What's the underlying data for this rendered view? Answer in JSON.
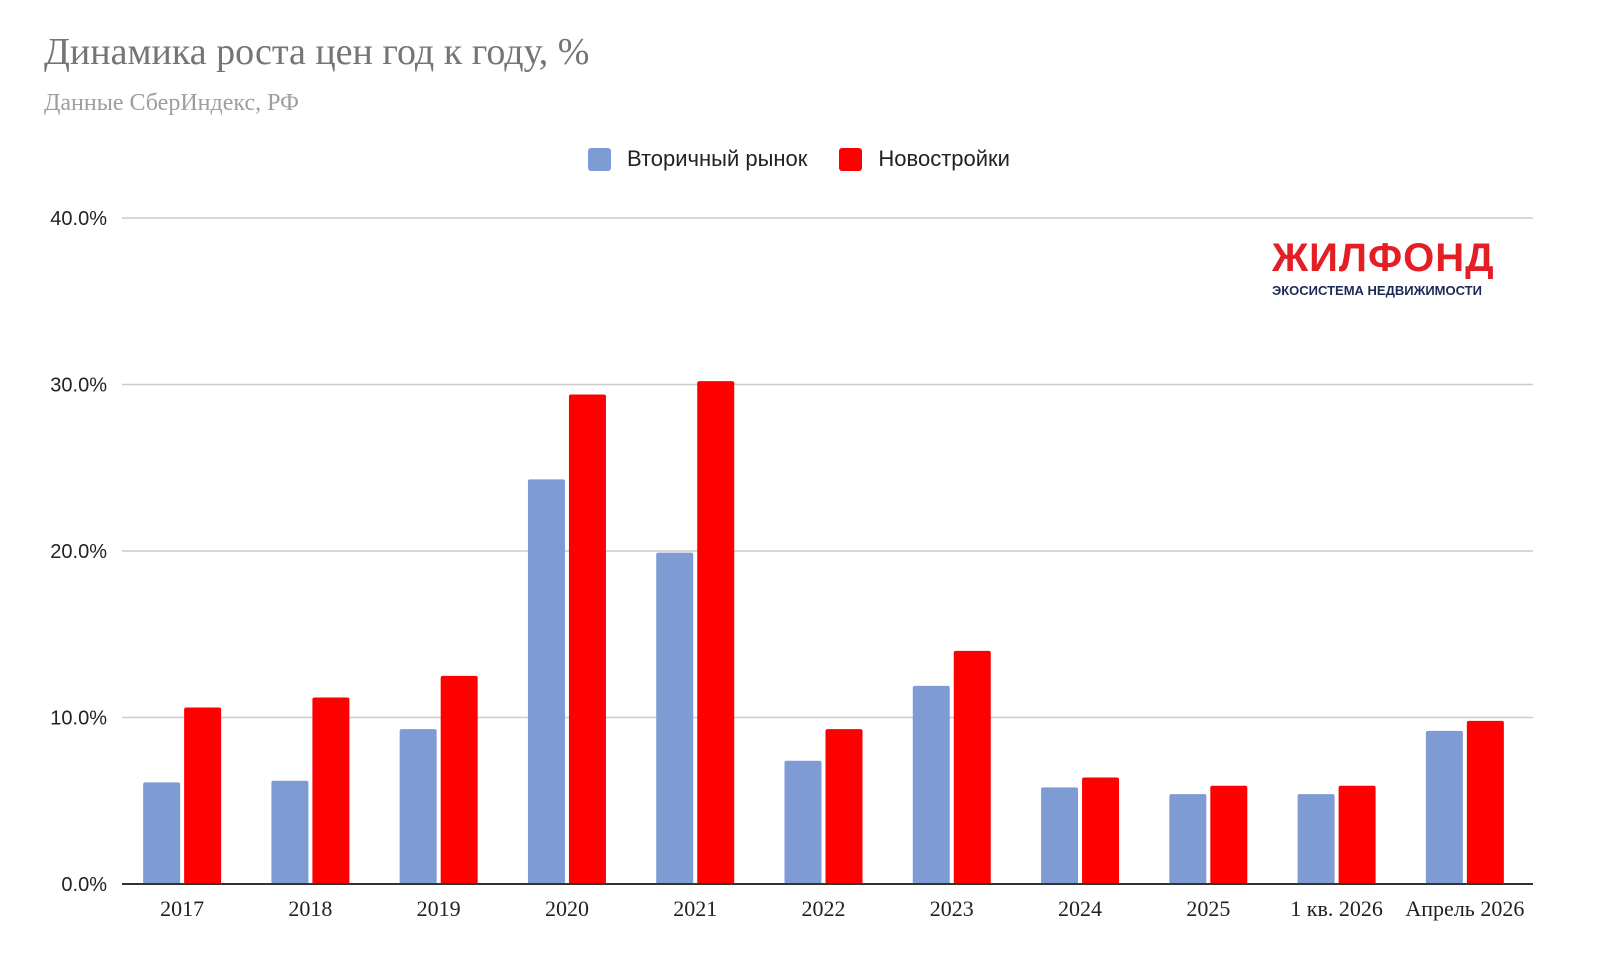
{
  "header": {
    "title": "Динамика роста цен год к году, %",
    "subtitle": "Данные СберИндекс, РФ"
  },
  "logo": {
    "name": "ЖИЛФОНД",
    "tagline": "ЭКОСИСТЕМА НЕДВИЖИМОСТИ"
  },
  "chart_data": {
    "type": "bar",
    "title": "Динамика роста цен год к году, %",
    "subtitle": "Данные СберИндекс, РФ",
    "xlabel": "",
    "ylabel": "",
    "categories": [
      "2017",
      "2018",
      "2019",
      "2020",
      "2021",
      "2022",
      "2023",
      "2024",
      "2025",
      "1 кв. 2026",
      "Апрель 2026"
    ],
    "series": [
      {
        "name": "Вторичный рынок",
        "color": "#7f9bd4",
        "values": [
          6.1,
          6.2,
          9.3,
          24.3,
          19.9,
          7.4,
          11.9,
          5.8,
          5.4,
          5.4,
          9.2
        ]
      },
      {
        "name": "Новостройки",
        "color": "#ff0000",
        "values": [
          10.6,
          11.2,
          12.5,
          29.4,
          30.2,
          9.3,
          14.0,
          6.4,
          5.9,
          5.9,
          9.8
        ]
      }
    ],
    "ylim": [
      0,
      40
    ],
    "yticks": [
      0,
      10,
      20,
      30,
      40
    ],
    "ytick_labels": [
      "0.0%",
      "10.0%",
      "20.0%",
      "30.0%",
      "40.0%"
    ],
    "grid": true,
    "legend": "top-center"
  }
}
